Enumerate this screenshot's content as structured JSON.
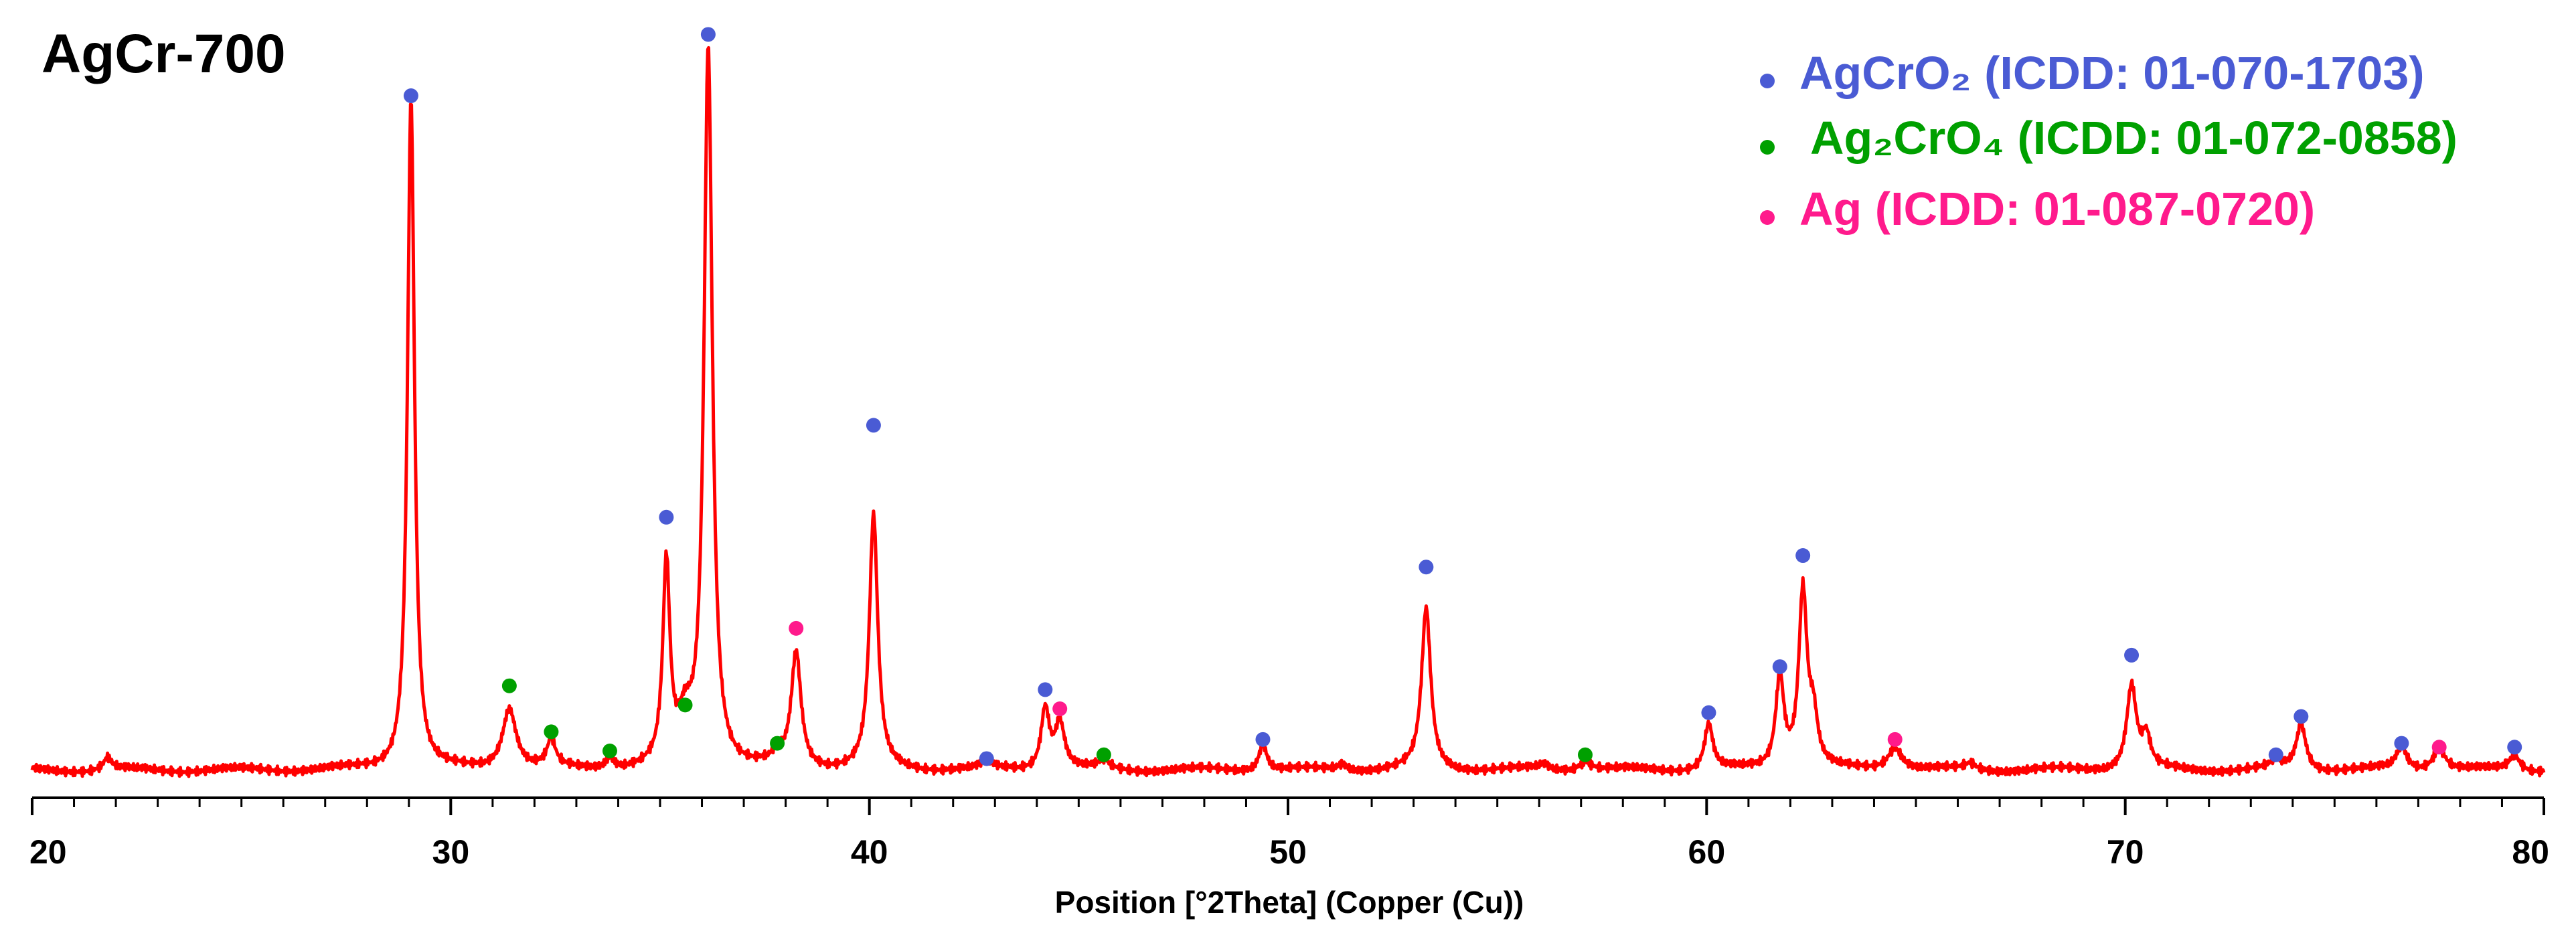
{
  "chart_data": {
    "type": "line",
    "title": "AgCr-700",
    "xlabel": "Position [°2Theta] (Copper (Cu))",
    "ylabel": "",
    "xlim": [
      20,
      80
    ],
    "ylim": [
      0,
      100
    ],
    "x_major_ticks": [
      20,
      30,
      40,
      50,
      60,
      70,
      80
    ],
    "x_minor_step": 1,
    "y_ticks_shown": false,
    "grid": false,
    "legend_position": "top-right",
    "colors": {
      "pattern": "#ff0000",
      "AgCrO2": "#4a5bd4",
      "Ag2CrO4": "#00a000",
      "Ag": "#ff1a8c"
    },
    "series": [
      {
        "name": "AgCr-700",
        "background": 3,
        "peaks": [
          {
            "x": 21.8,
            "h": 1.6,
            "w": 0.12
          },
          {
            "x": 29.05,
            "h": 88,
            "w": 0.1
          },
          {
            "x": 31.4,
            "h": 8,
            "w": 0.2
          },
          {
            "x": 32.4,
            "h": 3.5,
            "w": 0.12
          },
          {
            "x": 33.8,
            "h": 1.5,
            "w": 0.12
          },
          {
            "x": 35.15,
            "h": 26,
            "w": 0.1
          },
          {
            "x": 35.6,
            "h": 5,
            "w": 0.2
          },
          {
            "x": 36.15,
            "h": 94,
            "w": 0.12
          },
          {
            "x": 37.8,
            "h": 1.2,
            "w": 0.15
          },
          {
            "x": 38.25,
            "h": 15,
            "w": 0.14
          },
          {
            "x": 40.1,
            "h": 33,
            "w": 0.12
          },
          {
            "x": 42.8,
            "h": 0.8,
            "w": 0.15
          },
          {
            "x": 44.2,
            "h": 8,
            "w": 0.12
          },
          {
            "x": 44.55,
            "h": 6,
            "w": 0.14
          },
          {
            "x": 45.6,
            "h": 1,
            "w": 0.15
          },
          {
            "x": 49.4,
            "h": 3.5,
            "w": 0.12
          },
          {
            "x": 51.3,
            "h": 0.8,
            "w": 0.15
          },
          {
            "x": 53.3,
            "h": 21,
            "w": 0.13
          },
          {
            "x": 56.1,
            "h": 0.7,
            "w": 0.15
          },
          {
            "x": 57.1,
            "h": 1.2,
            "w": 0.2
          },
          {
            "x": 60.05,
            "h": 6,
            "w": 0.12
          },
          {
            "x": 61.75,
            "h": 12,
            "w": 0.12
          },
          {
            "x": 62.3,
            "h": 23,
            "w": 0.12
          },
          {
            "x": 62.55,
            "h": 6,
            "w": 0.12
          },
          {
            "x": 64.5,
            "h": 3,
            "w": 0.22
          },
          {
            "x": 66.3,
            "h": 0.8,
            "w": 0.15
          },
          {
            "x": 70.15,
            "h": 11,
            "w": 0.14
          },
          {
            "x": 70.5,
            "h": 4,
            "w": 0.12
          },
          {
            "x": 73.6,
            "h": 1,
            "w": 0.15
          },
          {
            "x": 74.2,
            "h": 6,
            "w": 0.14
          },
          {
            "x": 76.6,
            "h": 3,
            "w": 0.15
          },
          {
            "x": 77.5,
            "h": 3,
            "w": 0.18
          },
          {
            "x": 79.3,
            "h": 2,
            "w": 0.15
          }
        ]
      }
    ],
    "phases": [
      {
        "name": "AgCrO2 (ICDD: 01-070-1703)",
        "color": "#4a5bd4",
        "markers": [
          {
            "x": 29.05,
            "y": 91
          },
          {
            "x": 35.15,
            "y": 36
          },
          {
            "x": 36.15,
            "y": 99
          },
          {
            "x": 40.1,
            "y": 48
          },
          {
            "x": 42.8,
            "y": 4.5
          },
          {
            "x": 44.2,
            "y": 13.5
          },
          {
            "x": 49.4,
            "y": 7
          },
          {
            "x": 53.3,
            "y": 29.5
          },
          {
            "x": 60.05,
            "y": 10.5
          },
          {
            "x": 61.75,
            "y": 16.5
          },
          {
            "x": 62.3,
            "y": 31
          },
          {
            "x": 70.15,
            "y": 18
          },
          {
            "x": 73.6,
            "y": 5
          },
          {
            "x": 74.2,
            "y": 10
          },
          {
            "x": 76.6,
            "y": 6.5
          },
          {
            "x": 79.3,
            "y": 6
          }
        ]
      },
      {
        "name": "Ag2CrO4 (ICDD: 01-072-0858)",
        "color": "#00a000",
        "markers": [
          {
            "x": 31.4,
            "y": 14
          },
          {
            "x": 32.4,
            "y": 8
          },
          {
            "x": 33.8,
            "y": 5.5
          },
          {
            "x": 35.6,
            "y": 11.5
          },
          {
            "x": 37.8,
            "y": 6.5
          },
          {
            "x": 45.6,
            "y": 5
          },
          {
            "x": 57.1,
            "y": 5
          }
        ]
      },
      {
        "name": "Ag (ICDD: 01-087-0720)",
        "color": "#ff1a8c",
        "markers": [
          {
            "x": 38.25,
            "y": 21.5
          },
          {
            "x": 44.55,
            "y": 11
          },
          {
            "x": 64.5,
            "y": 7
          },
          {
            "x": 77.5,
            "y": 6
          }
        ]
      }
    ],
    "legend": [
      {
        "label": "AgCrO₂ (ICDD: 01-070-1703)",
        "color": "#4a5bd4"
      },
      {
        "label": "Ag₂CrO₄ (ICDD: 01-072-0858)",
        "color": "#00a000"
      },
      {
        "label": "Ag (ICDD: 01-087-0720)",
        "color": "#ff1a8c"
      }
    ]
  }
}
